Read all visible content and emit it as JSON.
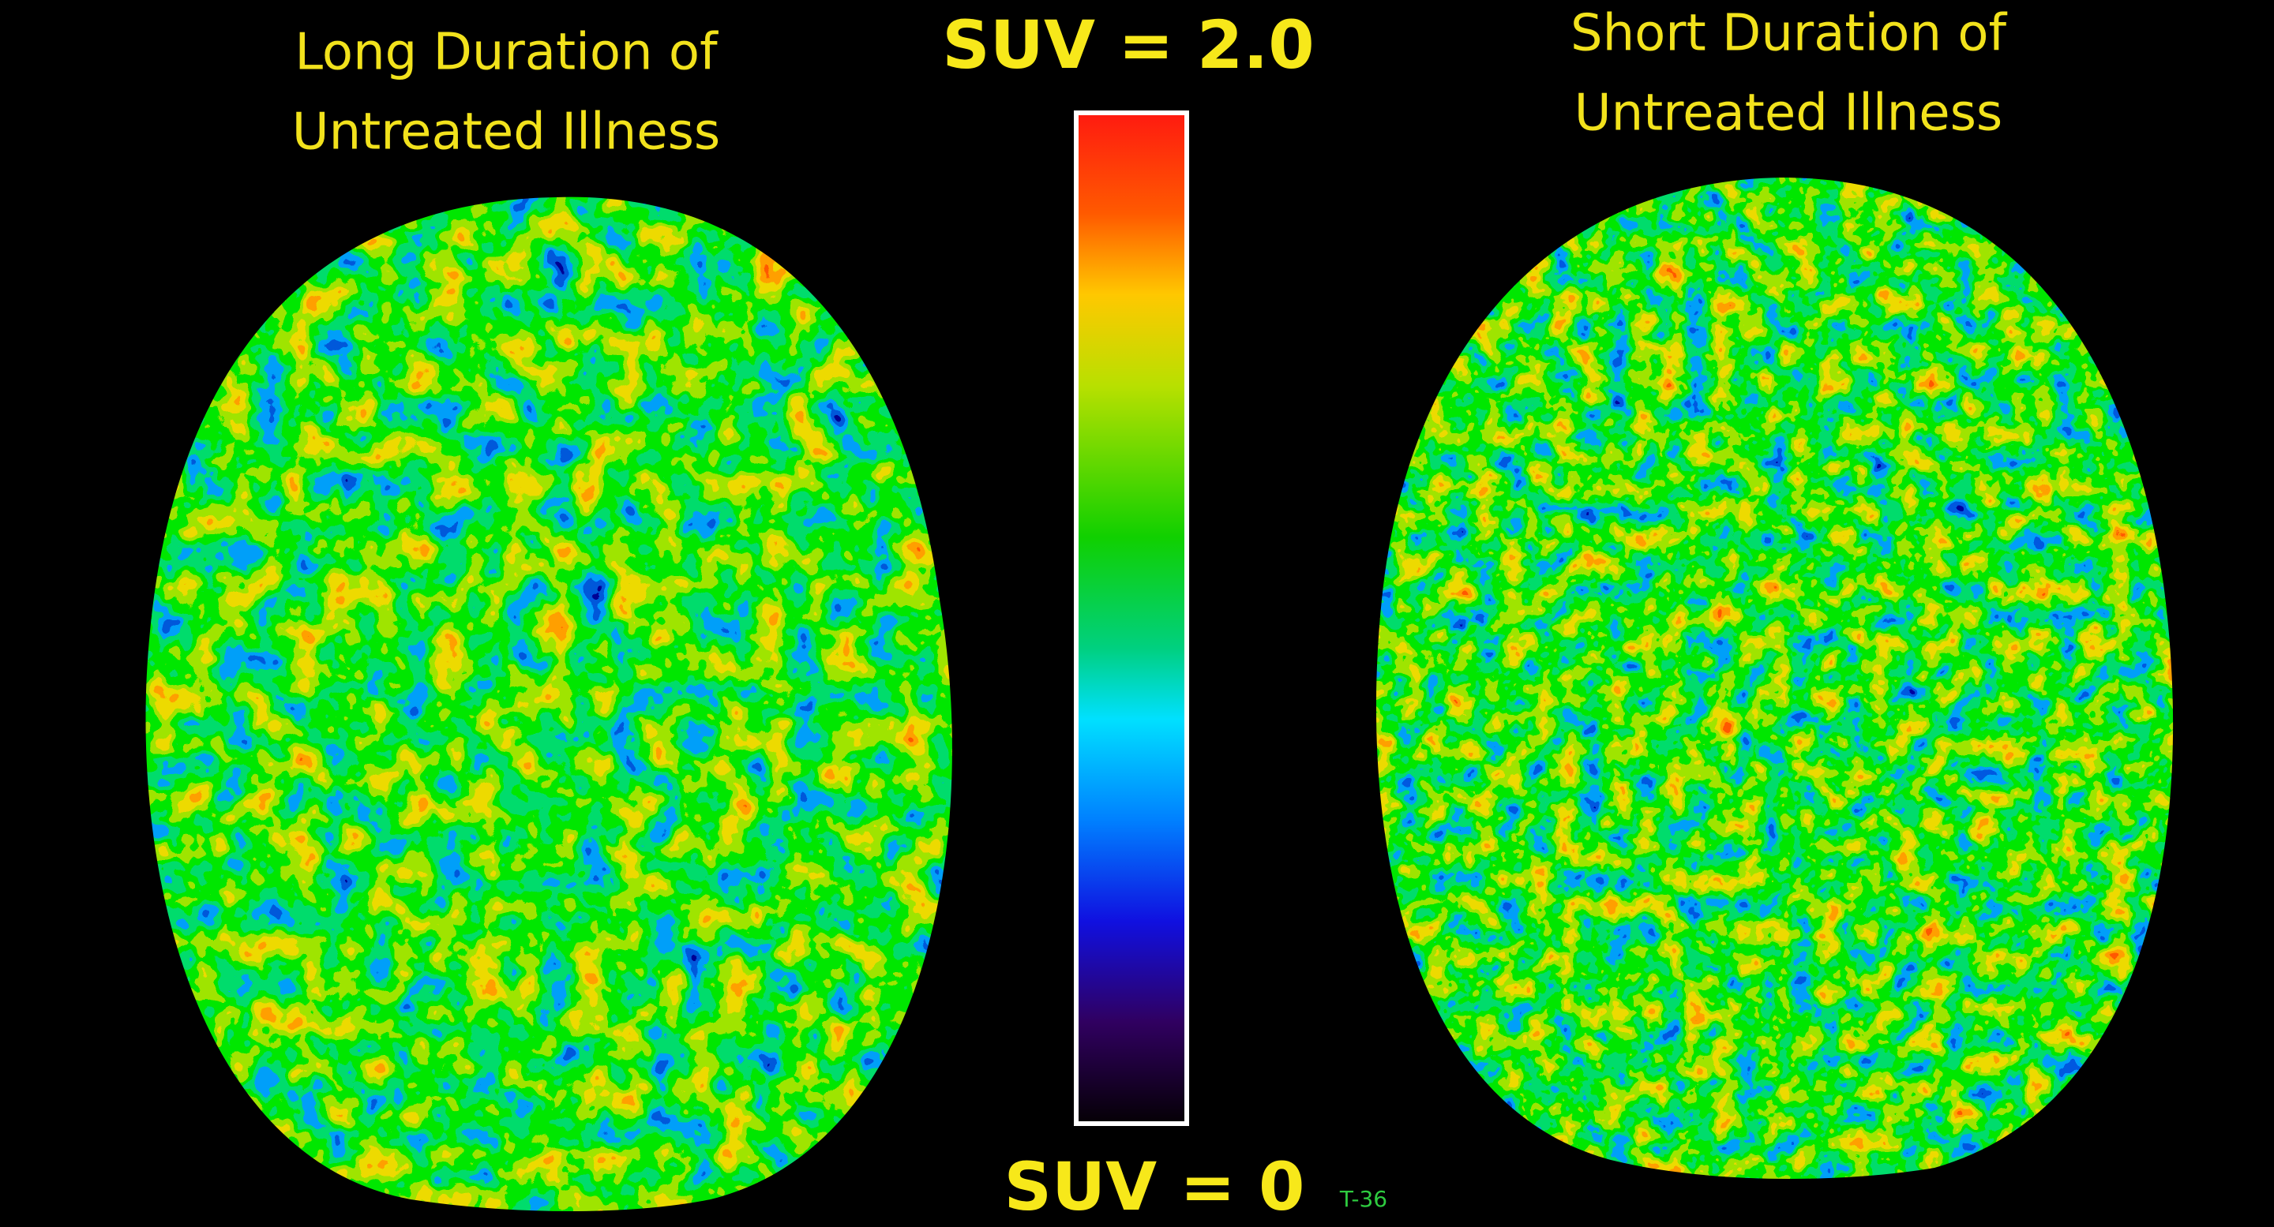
{
  "left_panel": {
    "title": [
      "Long Duration of",
      "Untreated Illness"
    ]
  },
  "right_panel": {
    "title": [
      "Short Duration of",
      "Untreated Illness"
    ]
  },
  "colorbar": {
    "max_label": "SUV = 2.0",
    "min_label": "SUV = 0"
  },
  "slice_label": "T-36"
}
